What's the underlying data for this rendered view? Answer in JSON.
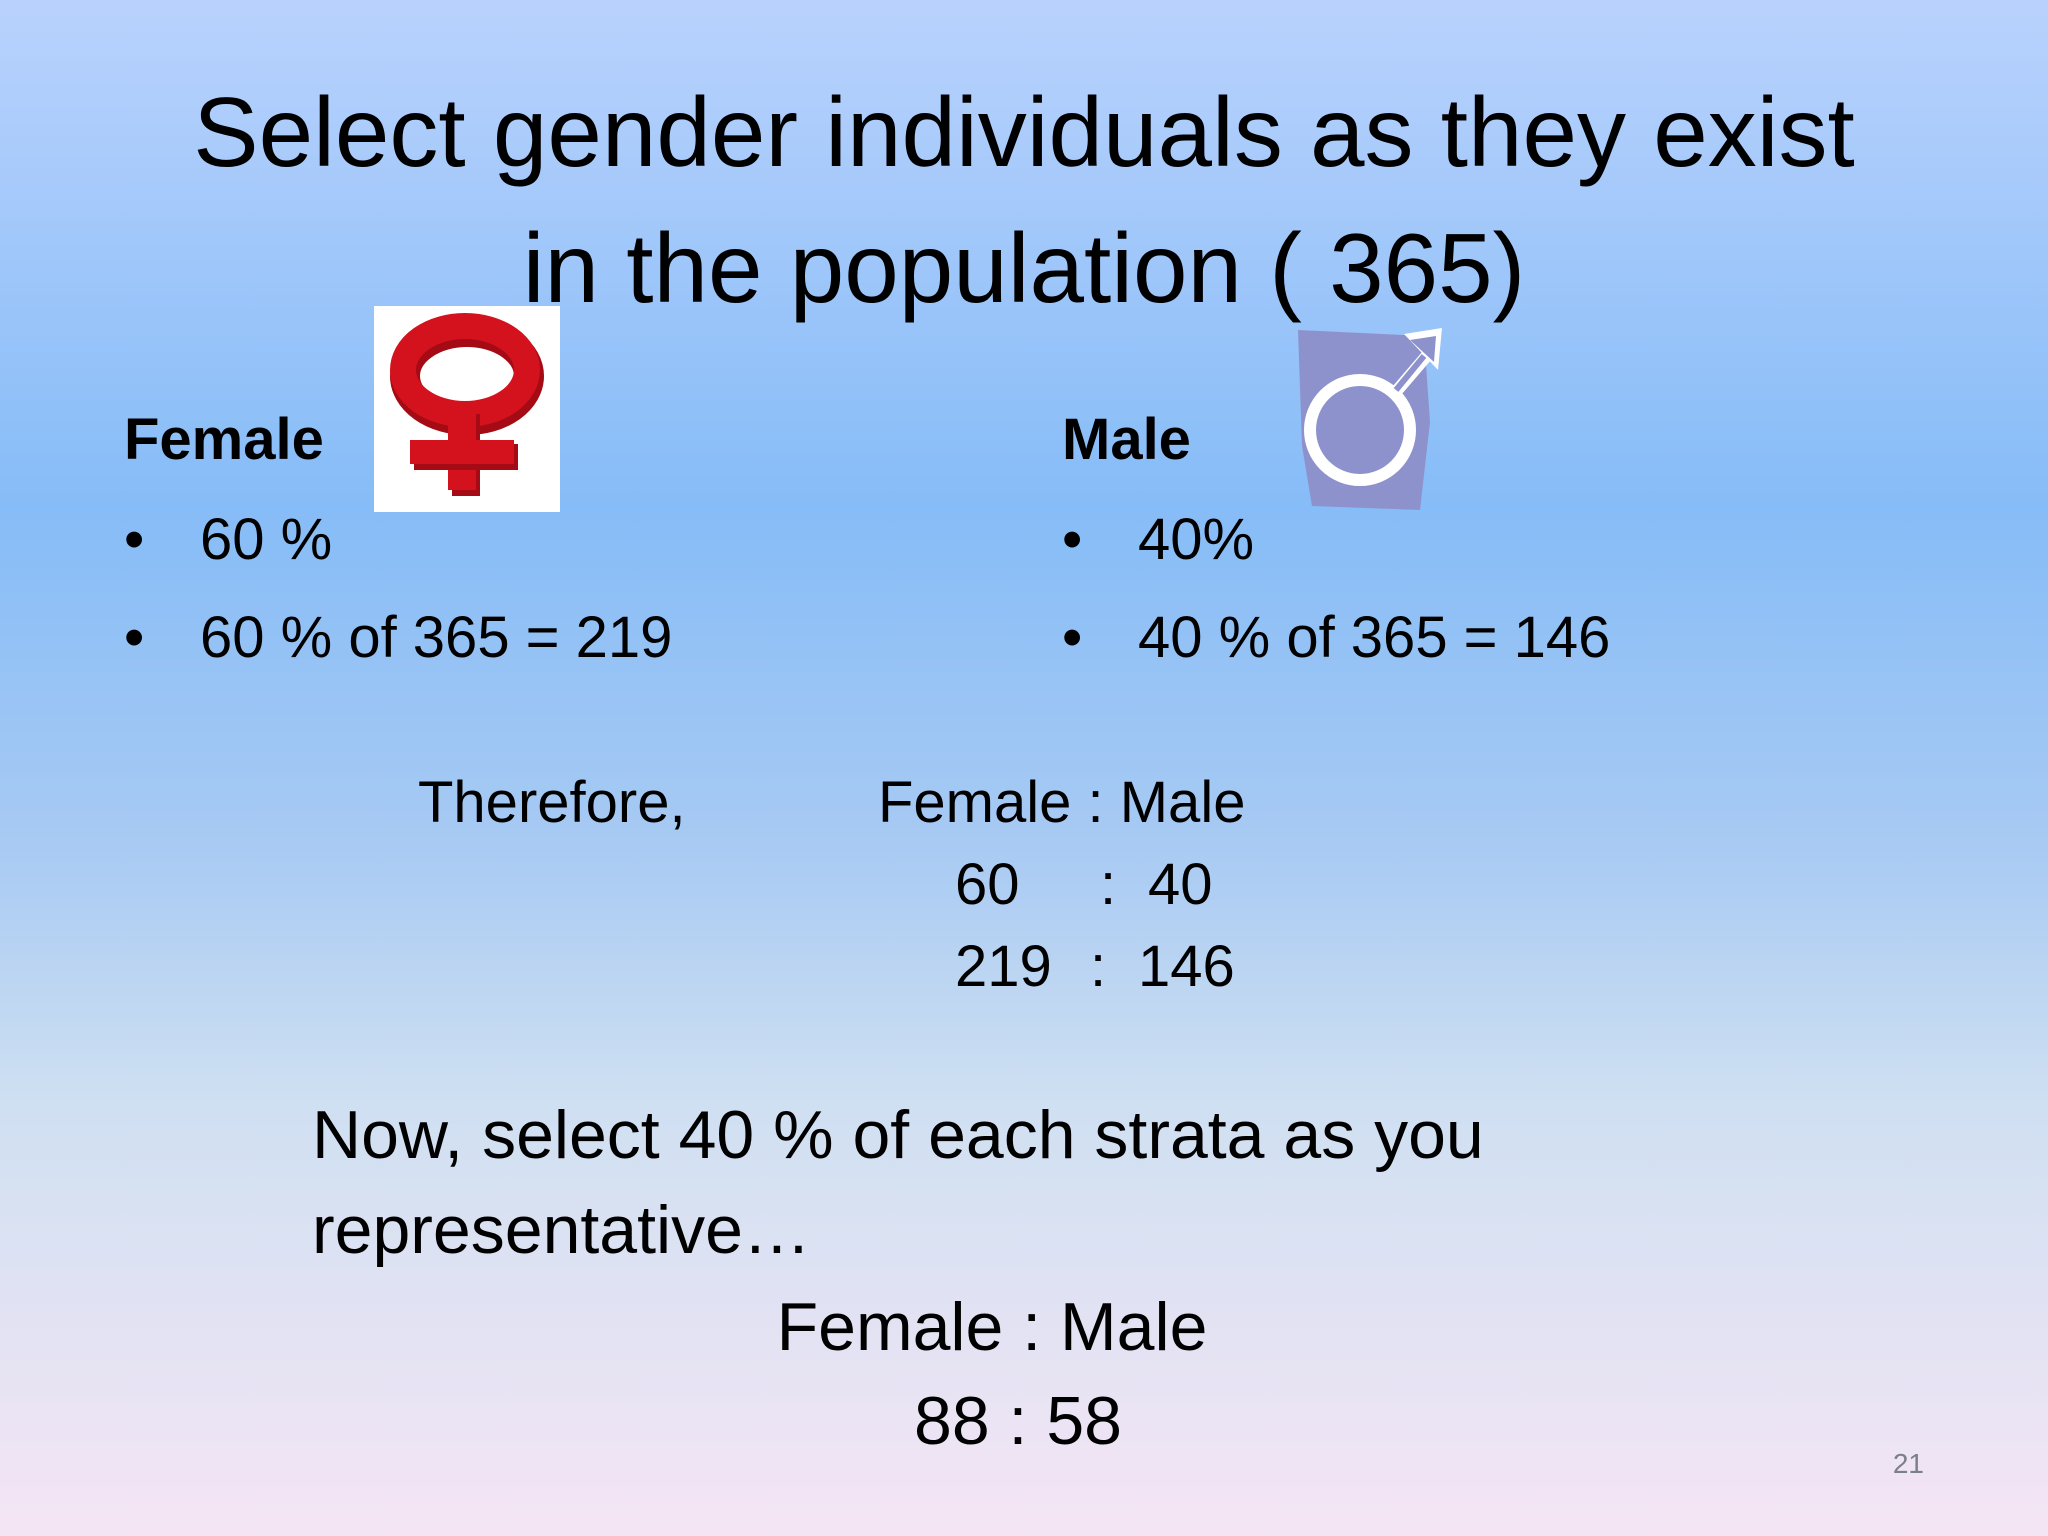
{
  "slide": {
    "title_line1": "Select gender individuals as they exist",
    "title_line2": "in the population ( 365)",
    "female": {
      "heading": "Female",
      "bullets": [
        "60 %",
        "60 % of 365 = 219"
      ],
      "icon": "female-symbol-icon",
      "icon_color": "#d3121d"
    },
    "male": {
      "heading": "Male",
      "bullets": [
        "40%",
        "40 % of 365 = 146"
      ],
      "icon": "male-symbol-icon",
      "icon_color": "#8d92cc"
    },
    "bullet_char": "•",
    "ratio_block": {
      "therefore": "Therefore,",
      "header": "Female : Male",
      "row1_left": "60",
      "row1_sep": ":",
      "row1_right": "40",
      "row2_left": "219",
      "row2_sep": ":",
      "row2_right": "146"
    },
    "conclusion": {
      "line1": "Now, select 40 % of each strata as you",
      "line2": "representative…",
      "header": "Female : Male",
      "result": "88 : 58"
    },
    "page_number": "21"
  }
}
